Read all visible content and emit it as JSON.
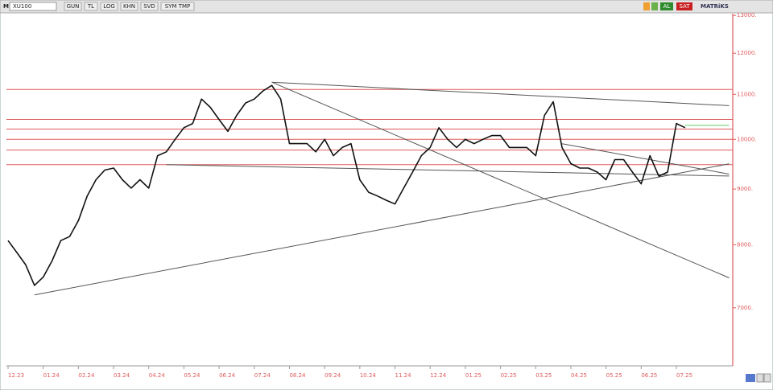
{
  "toolbar": {
    "logo": "M",
    "symbol": "XU100",
    "buttons": [
      "GUN",
      "TL",
      "LOG",
      "KHN",
      "SVD",
      "SYM TMP"
    ],
    "buy": "AL",
    "sell": "SAT",
    "brand": "MATRiKS"
  },
  "chart_data": {
    "type": "line",
    "color": "#111111",
    "log_scale": true,
    "categories": [
      "12.23",
      null,
      null,
      null,
      "01.24",
      null,
      null,
      null,
      "02.24",
      null,
      null,
      null,
      "03.24",
      null,
      null,
      null,
      "04.24",
      null,
      null,
      null,
      "05.24",
      null,
      null,
      null,
      "06.24",
      null,
      null,
      null,
      "07.24",
      null,
      null,
      null,
      "08.24",
      null,
      null,
      null,
      "09.24",
      null,
      null,
      null,
      "10.24",
      null,
      null,
      null,
      "11.24",
      null,
      null,
      null,
      "12.24",
      null,
      null,
      null,
      "01.25",
      null,
      null,
      null,
      "02.25",
      null,
      null,
      null,
      "03.25",
      null,
      null,
      null,
      "04.25",
      null,
      null,
      null,
      "05.25",
      null,
      null,
      null,
      "06.25",
      null,
      null,
      null,
      "07.25",
      null
    ],
    "values": [
      8070,
      7870,
      7670,
      7340,
      7470,
      7730,
      8070,
      8140,
      8420,
      8870,
      9180,
      9370,
      9410,
      9180,
      9020,
      9180,
      9020,
      9660,
      9740,
      10000,
      10250,
      10340,
      10890,
      10700,
      10430,
      10170,
      10520,
      10800,
      10890,
      11080,
      11210,
      10890,
      9910,
      9910,
      9910,
      9740,
      10000,
      9660,
      9830,
      9910,
      9180,
      8940,
      8870,
      8790,
      8720,
      9020,
      9330,
      9660,
      9830,
      10250,
      10000,
      9830,
      10000,
      9910,
      10000,
      10080,
      10080,
      9830,
      9830,
      9830,
      9660,
      10520,
      10830,
      9830,
      9500,
      9410,
      9410,
      9330,
      9180,
      9580,
      9580,
      9330,
      9100,
      9660,
      9250,
      9330,
      10340,
      10250
    ],
    "ylim": [
      6190,
      13250
    ],
    "yticks": [
      {
        "value": 7000,
        "label": "7000."
      },
      {
        "value": 8000,
        "label": "8000."
      },
      {
        "value": 9000,
        "label": "9000."
      },
      {
        "value": 10000,
        "label": "10000."
      },
      {
        "value": 11000,
        "label": "11000."
      },
      {
        "value": 12000,
        "label": "12000."
      },
      {
        "value": 13000,
        "label": "13000."
      }
    ],
    "levels": [
      11115,
      10430,
      10220,
      10000,
      9775,
      9478
    ],
    "level_color": "#e05a5a",
    "trendlines": [
      {
        "x": [
          30,
          82
        ],
        "values": [
          11287,
          10740
        ]
      },
      {
        "x": [
          30,
          82
        ],
        "values": [
          11287,
          7458
        ]
      },
      {
        "x": [
          3,
          82
        ],
        "values": [
          7194,
          9495
        ]
      },
      {
        "x": [
          18,
          82
        ],
        "values": [
          9478,
          9253
        ]
      },
      {
        "x": [
          63,
          82
        ],
        "values": [
          9909,
          9290
        ]
      }
    ],
    "trend_color": "#555555",
    "marker": {
      "x": [
        77,
        82
      ],
      "values": [
        10300,
        10300
      ],
      "color": "#66cc66"
    }
  }
}
